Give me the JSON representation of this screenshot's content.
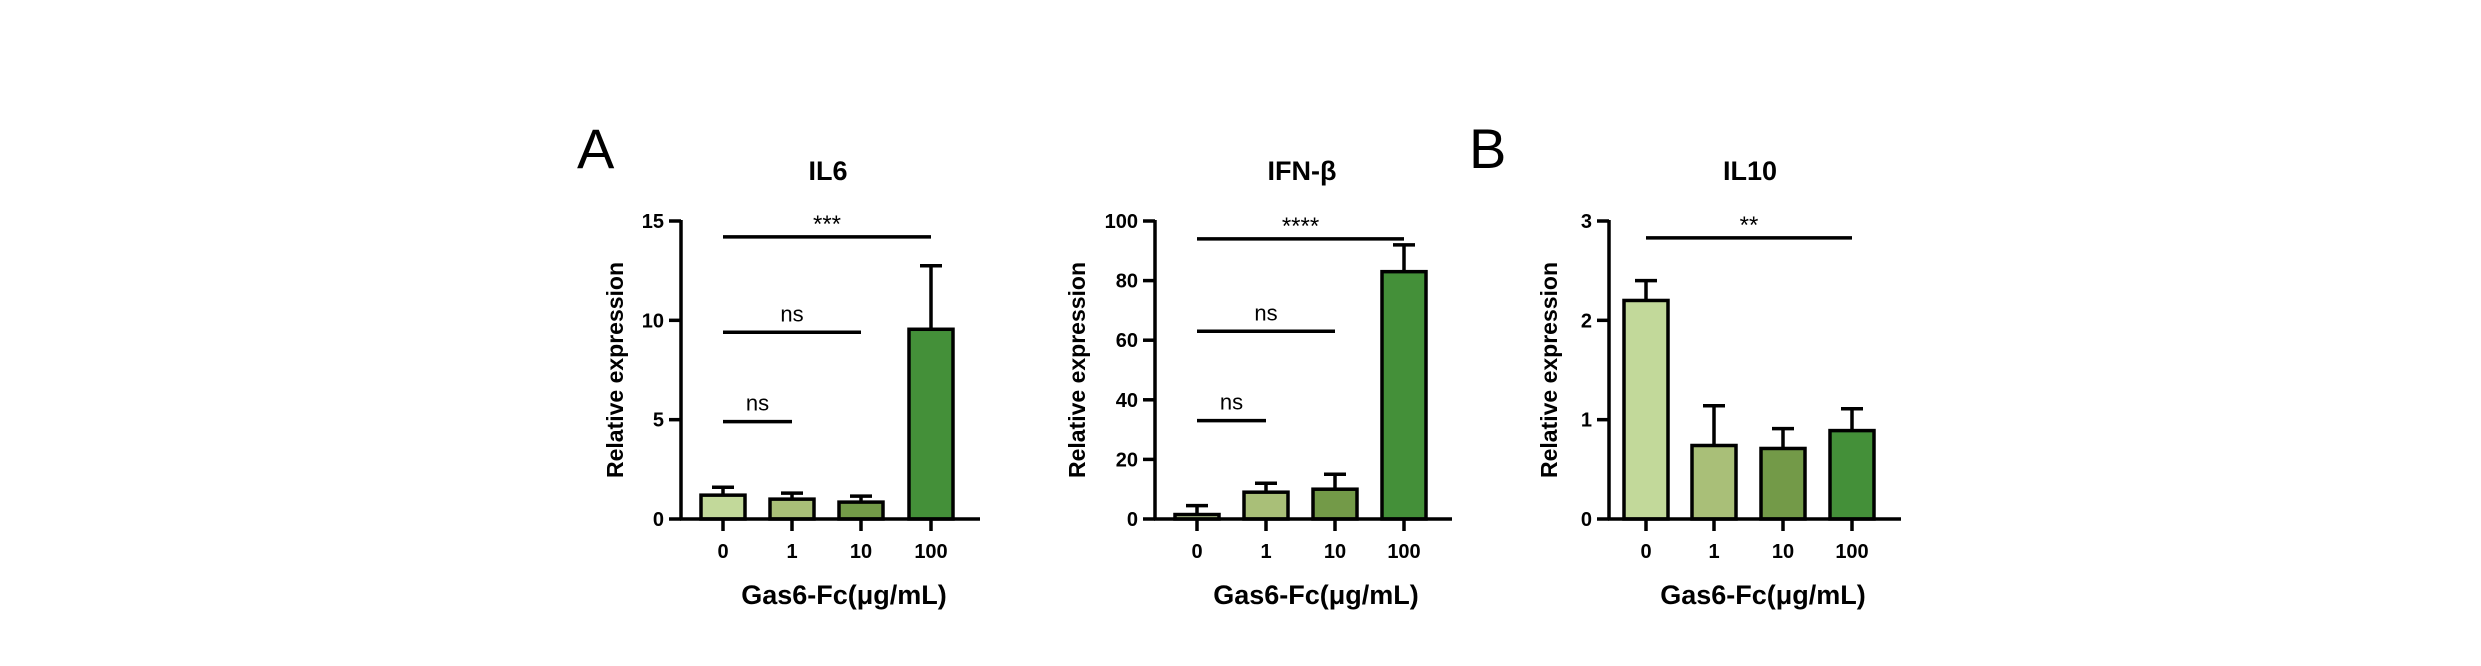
{
  "panel_letters": [
    "A",
    "B"
  ],
  "chart_data": [
    {
      "type": "bar",
      "title": "IL6",
      "xlabel": "Gas6-Fc(μg/mL)",
      "ylabel": "Relative expression",
      "categories": [
        "0",
        "1",
        "10",
        "100"
      ],
      "values": [
        1.2,
        1.0,
        0.85,
        9.55
      ],
      "errors": [
        0.4,
        0.3,
        0.3,
        3.2
      ],
      "colors": [
        "#c2d99a",
        "#a9bf78",
        "#739a48",
        "#449039"
      ],
      "ylim": [
        0,
        15
      ],
      "yticks": [
        0,
        5,
        10,
        15
      ],
      "significance": [
        {
          "from": "0",
          "to": "100",
          "label": "***",
          "y": 14.2
        },
        {
          "from": "0",
          "to": "10",
          "label": "ns",
          "y": 9.4
        },
        {
          "from": "0",
          "to": "1",
          "label": "ns",
          "y": 4.9
        }
      ]
    },
    {
      "type": "bar",
      "title": "IFN-β",
      "xlabel": "Gas6-Fc(μg/mL)",
      "ylabel": "Relative expression",
      "categories": [
        "0",
        "1",
        "10",
        "100"
      ],
      "values": [
        1.5,
        9.0,
        10.0,
        83.0
      ],
      "errors": [
        3.0,
        3.0,
        5.0,
        9.0
      ],
      "colors": [
        "#c2d99a",
        "#a9bf78",
        "#739a48",
        "#449039"
      ],
      "ylim": [
        0,
        100
      ],
      "yticks": [
        0,
        20,
        40,
        60,
        80,
        100
      ],
      "significance": [
        {
          "from": "0",
          "to": "100",
          "label": "****",
          "y": 94
        },
        {
          "from": "0",
          "to": "10",
          "label": "ns",
          "y": 63
        },
        {
          "from": "0",
          "to": "1",
          "label": "ns",
          "y": 33
        }
      ]
    },
    {
      "type": "bar",
      "title": "IL10",
      "xlabel": "Gas6-Fc(μg/mL)",
      "ylabel": "Relative expression",
      "categories": [
        "0",
        "1",
        "10",
        "100"
      ],
      "values": [
        2.2,
        0.74,
        0.71,
        0.89
      ],
      "errors": [
        0.2,
        0.4,
        0.2,
        0.22
      ],
      "colors": [
        "#c2d99a",
        "#a9bf78",
        "#739a48",
        "#449039"
      ],
      "ylim": [
        0,
        3
      ],
      "yticks": [
        0,
        1,
        2,
        3
      ],
      "significance": [
        {
          "from": "0",
          "to": "100",
          "label": "**",
          "y": 2.83
        }
      ]
    }
  ]
}
